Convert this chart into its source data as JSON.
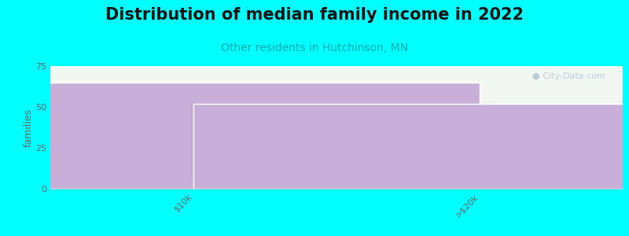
{
  "title": "Distribution of median family income in 2022",
  "subtitle": "Other residents in Hutchinson, MN",
  "categories": [
    "$10k",
    ">$20k"
  ],
  "values": [
    65,
    52
  ],
  "bar_color": "#c9aeda",
  "bar_edge_color": "#c9aeda",
  "ylabel": "families",
  "ylim": [
    0,
    75
  ],
  "yticks": [
    0,
    25,
    50,
    75
  ],
  "background_color": "#00ffff",
  "plot_bg_color": "#f2f7f2",
  "title_fontsize": 15,
  "subtitle_fontsize": 10,
  "ylabel_fontsize": 9,
  "title_color": "#111111",
  "subtitle_color": "#00aaaa",
  "tick_label_color": "#666666",
  "watermark_text": "City-Data.com",
  "watermark_color": "#aac4d4",
  "bar_width": 1.0,
  "x_positions": [
    0.25,
    0.75
  ],
  "xlim": [
    0.0,
    1.0
  ]
}
